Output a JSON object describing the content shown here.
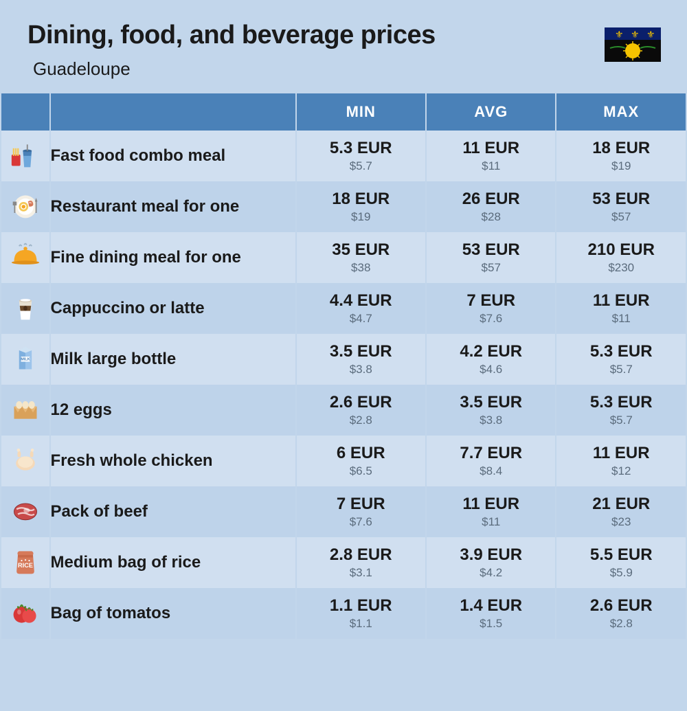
{
  "header": {
    "title": "Dining, food, and beverage prices",
    "subtitle": "Guadeloupe"
  },
  "flag": {
    "bg_top": "#0a1f6b",
    "bg_bottom": "#0a0a0a",
    "sun": "#f5c400",
    "green": "#2a8a2a",
    "fleur": "#f5c400"
  },
  "columns": {
    "min": "MIN",
    "avg": "AVG",
    "max": "MAX"
  },
  "colors": {
    "header_bg": "#4a81b8",
    "row_odd": "#d0dff0",
    "row_even": "#bed3ea",
    "page_bg": "#c2d6eb",
    "text": "#1a1a1a",
    "usd_text": "#5a6b7c"
  },
  "items": [
    {
      "icon": "fastfood",
      "label": "Fast food combo meal",
      "min_eur": "5.3 EUR",
      "min_usd": "$5.7",
      "avg_eur": "11 EUR",
      "avg_usd": "$11",
      "max_eur": "18 EUR",
      "max_usd": "$19"
    },
    {
      "icon": "plate",
      "label": "Restaurant meal for one",
      "min_eur": "18 EUR",
      "min_usd": "$19",
      "avg_eur": "26 EUR",
      "avg_usd": "$28",
      "max_eur": "53 EUR",
      "max_usd": "$57"
    },
    {
      "icon": "cloche",
      "label": "Fine dining meal for one",
      "min_eur": "35 EUR",
      "min_usd": "$38",
      "avg_eur": "53 EUR",
      "avg_usd": "$57",
      "max_eur": "210 EUR",
      "max_usd": "$230"
    },
    {
      "icon": "coffee",
      "label": "Cappuccino or latte",
      "min_eur": "4.4 EUR",
      "min_usd": "$4.7",
      "avg_eur": "7 EUR",
      "avg_usd": "$7.6",
      "max_eur": "11 EUR",
      "max_usd": "$11"
    },
    {
      "icon": "milk",
      "label": "Milk large bottle",
      "min_eur": "3.5 EUR",
      "min_usd": "$3.8",
      "avg_eur": "4.2 EUR",
      "avg_usd": "$4.6",
      "max_eur": "5.3 EUR",
      "max_usd": "$5.7"
    },
    {
      "icon": "eggs",
      "label": "12 eggs",
      "min_eur": "2.6 EUR",
      "min_usd": "$2.8",
      "avg_eur": "3.5 EUR",
      "avg_usd": "$3.8",
      "max_eur": "5.3 EUR",
      "max_usd": "$5.7"
    },
    {
      "icon": "chicken",
      "label": "Fresh whole chicken",
      "min_eur": "6 EUR",
      "min_usd": "$6.5",
      "avg_eur": "7.7 EUR",
      "avg_usd": "$8.4",
      "max_eur": "11 EUR",
      "max_usd": "$12"
    },
    {
      "icon": "beef",
      "label": "Pack of beef",
      "min_eur": "7 EUR",
      "min_usd": "$7.6",
      "avg_eur": "11 EUR",
      "avg_usd": "$11",
      "max_eur": "21 EUR",
      "max_usd": "$23"
    },
    {
      "icon": "rice",
      "label": "Medium bag of rice",
      "min_eur": "2.8 EUR",
      "min_usd": "$3.1",
      "avg_eur": "3.9 EUR",
      "avg_usd": "$4.2",
      "max_eur": "5.5 EUR",
      "max_usd": "$5.9"
    },
    {
      "icon": "tomato",
      "label": "Bag of tomatos",
      "min_eur": "1.1 EUR",
      "min_usd": "$1.1",
      "avg_eur": "1.4 EUR",
      "avg_usd": "$1.5",
      "max_eur": "2.6 EUR",
      "max_usd": "$2.8"
    }
  ]
}
